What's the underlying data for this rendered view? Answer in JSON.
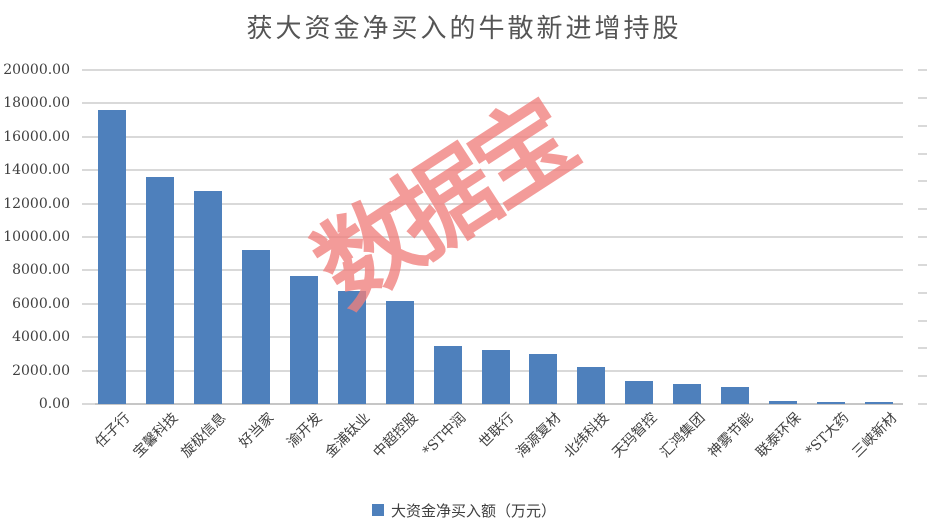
{
  "title": "获大资金净买入的牛散新进增持股",
  "watermark_text": "数据宝",
  "legend": {
    "label": "大资金净买入额（万元）"
  },
  "colors": {
    "bar": "#4e80bc",
    "watermark": "#f0807d",
    "gridline": "#d9d9d9",
    "axis_line": "#c6c6c6",
    "tick_text": "#404040",
    "title_text": "#555555",
    "background": "#ffffff"
  },
  "y_axis": {
    "tick_labels_top_down": [
      "20000.00",
      "18000.00",
      "16000.00",
      "14000.00",
      "12000.00",
      "10000.00",
      "8000.00",
      "6000.00",
      "4000.00",
      "2000.00",
      "0.00"
    ],
    "max": 20000,
    "min": 0
  },
  "right_axis_tick_count": 13,
  "chart_data": {
    "type": "bar",
    "title": "获大资金净买入的牛散新进增持股",
    "categories": [
      "任子行",
      "宝馨科技",
      "旋极信息",
      "好当家",
      "渝开发",
      "金浦钛业",
      "中超控股",
      "*ST中润",
      "世联行",
      "海源复材",
      "北纬科技",
      "天玛智控",
      "汇鸿集团",
      "神雾节能",
      "联泰环保",
      "*ST大药",
      "三峡新材"
    ],
    "values": [
      17600,
      13620,
      12730,
      9200,
      7650,
      6740,
      6140,
      3450,
      3250,
      3000,
      2230,
      1350,
      1170,
      1000,
      200,
      140,
      120
    ],
    "series_name": "大资金净买入额（万元）",
    "xlabel": "",
    "ylabel": "大资金净买入额（万元）",
    "ylim": [
      0,
      20000
    ],
    "y_tick_step": 2000,
    "grid": true,
    "legend_position": "bottom",
    "x_label_rotation_deg": -45
  }
}
